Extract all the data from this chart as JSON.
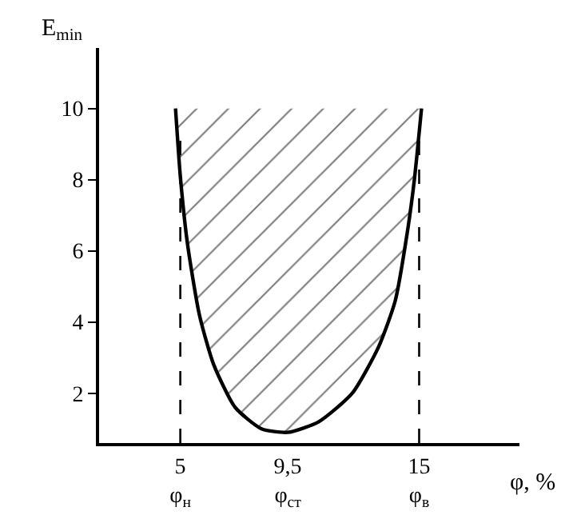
{
  "chart_data": {
    "type": "area",
    "xlabel": "φ, %",
    "ylabel": "E$_{min}$",
    "x": [
      4.8,
      5.0,
      5.3,
      5.8,
      6.4,
      7.3,
      8.4,
      9.5,
      10.8,
      12.2,
      13.3,
      14.0,
      14.5,
      14.8,
      15.1
    ],
    "series": [
      {
        "color": "#000000",
        "values": [
          10,
          8.1,
          6.2,
          4.2,
          2.8,
          1.6,
          1.0,
          0.9,
          1.2,
          2.0,
          3.3,
          4.6,
          6.5,
          8.0,
          10
        ]
      }
    ],
    "xlim": [
      1.6,
      19.2
    ],
    "ylim": [
      0.6,
      11.7
    ],
    "xticks": [
      {
        "value": 5,
        "label": "5\nφ$_{н}$"
      },
      {
        "value": 9.5,
        "label": "9,5\nφ$_{ст}$"
      },
      {
        "value": 15,
        "label": "15\nφ$_{в}$"
      }
    ],
    "yticks": [
      2,
      4,
      6,
      8,
      10
    ],
    "ref_lines": [
      {
        "axis": "x",
        "value": 5,
        "color": "#000000",
        "line_style": "dashed"
      },
      {
        "axis": "x",
        "value": 15,
        "color": "#000000",
        "line_style": "dashed"
      }
    ],
    "marker": "none",
    "line_style": "solid"
  }
}
